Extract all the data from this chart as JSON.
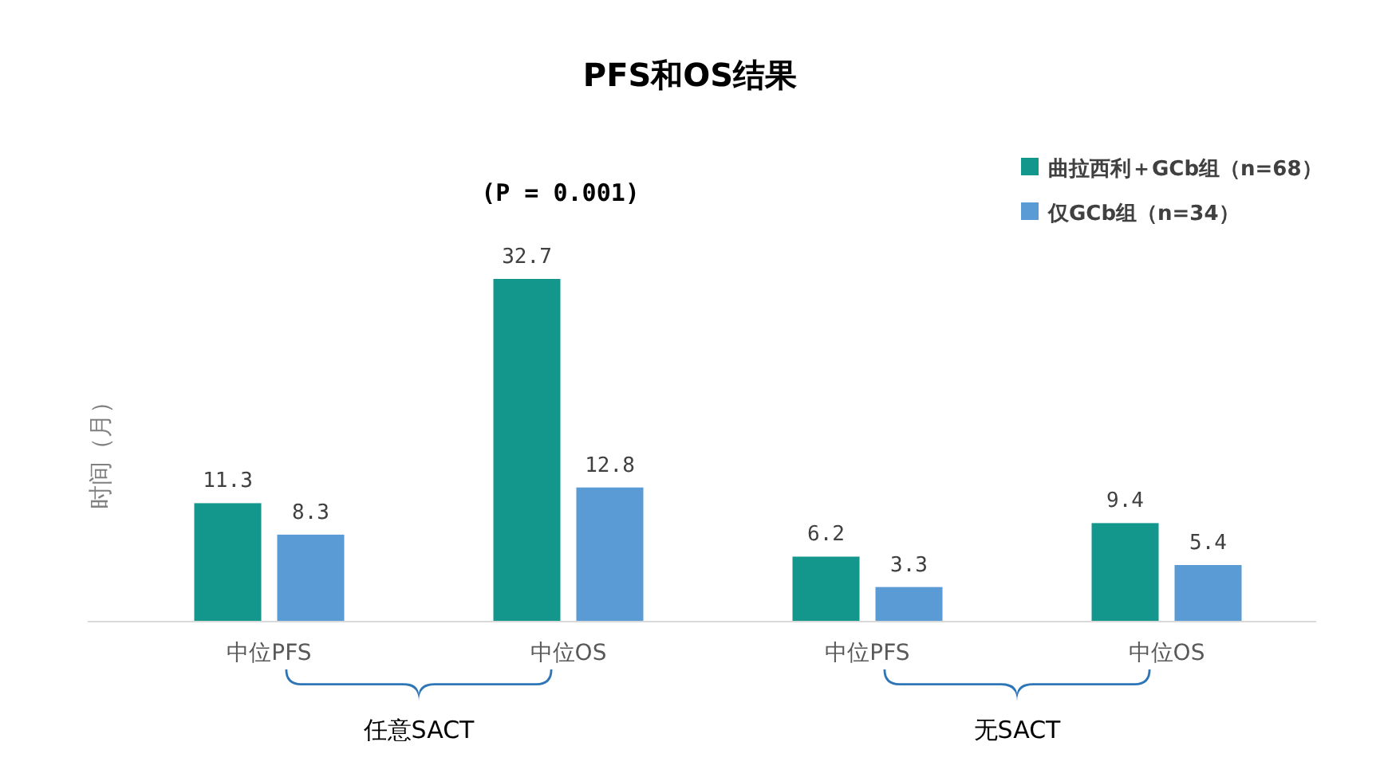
{
  "chart_data": {
    "type": "bar",
    "title": "PFS和OS结果",
    "ylabel": "时间（月）",
    "categories": [
      "中位PFS",
      "中位OS",
      "中位PFS",
      "中位OS"
    ],
    "series": [
      {
        "name": "曲拉西利＋GCb组（n=68）",
        "color": "#13968b",
        "values": [
          11.3,
          32.7,
          6.2,
          9.4
        ]
      },
      {
        "name": "仅GCb组（n=34）",
        "color": "#5b9bd5",
        "values": [
          8.3,
          12.8,
          3.3,
          5.4
        ]
      }
    ],
    "data_labels": true,
    "legend": "top right",
    "grid": false,
    "annotations": [
      "(P = 0.001)",
      "任意SACT",
      "无SACT"
    ]
  }
}
